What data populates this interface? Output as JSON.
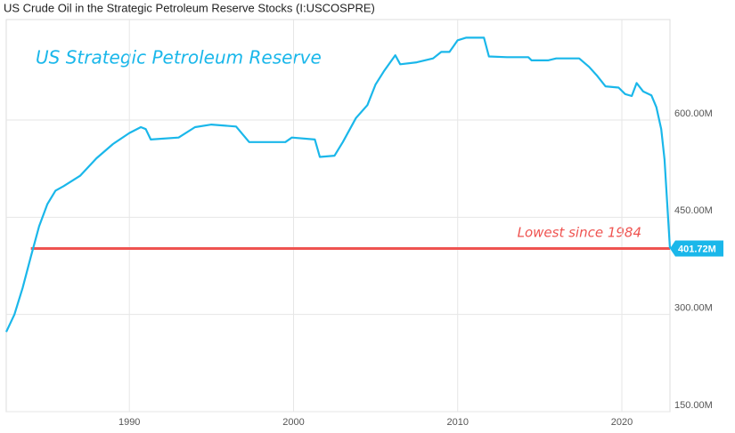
{
  "chart_data": {
    "type": "line",
    "title": "US Crude Oil in the Strategic Petroleum Reserve Stocks (I:USCOSPRE)",
    "annotations": [
      "US Strategic Petroleum Reserve",
      "Lowest since 1984"
    ],
    "series": [
      {
        "name": "US Crude Oil in the Strategic Petroleum Reserve Stocks",
        "color": "#1ab7ea",
        "x": [
          1982.5,
          1983,
          1983.5,
          1984,
          1984.5,
          1985,
          1985.5,
          1986,
          1987,
          1988,
          1989,
          1990,
          1990.7,
          1991,
          1991.3,
          1993,
          1994,
          1995,
          1996.5,
          1997.3,
          1999.5,
          1999.9,
          2001.3,
          2001.6,
          2002.5,
          2003,
          2003.8,
          2004.5,
          2005,
          2005.5,
          2006.2,
          2006.5,
          2007.5,
          2008.5,
          2009,
          2009.5,
          2010,
          2010.5,
          2011.6,
          2011.9,
          2013,
          2014.3,
          2014.5,
          2015.5,
          2016,
          2017.4,
          2018,
          2018.5,
          2019,
          2019.8,
          2020.2,
          2020.6,
          2020.9,
          2021.3,
          2021.8,
          2022.1,
          2022.4,
          2022.6,
          2022.93
        ],
        "values": [
          273,
          300,
          341,
          389,
          436,
          470,
          491,
          498,
          514,
          541,
          563,
          580,
          589,
          586,
          570,
          573,
          589,
          593,
          590,
          566,
          566,
          573,
          570,
          543,
          545,
          566,
          603,
          623,
          655,
          675,
          700,
          686,
          689,
          695,
          705,
          705,
          723,
          727,
          727,
          698,
          697,
          697,
          692,
          692,
          695,
          695,
          682,
          668,
          652,
          650,
          640,
          637,
          657,
          644,
          638,
          620,
          586,
          539,
          401.72
        ],
        "last_label": "401.72M"
      }
    ],
    "reference_line": {
      "value": 401.72,
      "start": 1984,
      "color": "#ef5350"
    },
    "xlim": [
      1982.5,
      2022.93
    ],
    "xticks": [
      1990,
      2000,
      2010,
      2020
    ],
    "ylim": [
      150,
      755
    ],
    "yticks": [
      {
        "value": 150,
        "label": "150.00M"
      },
      {
        "value": 300,
        "label": "300.00M"
      },
      {
        "value": 450,
        "label": "450.00M"
      },
      {
        "value": 600,
        "label": "600.00M"
      }
    ],
    "grid": true
  }
}
